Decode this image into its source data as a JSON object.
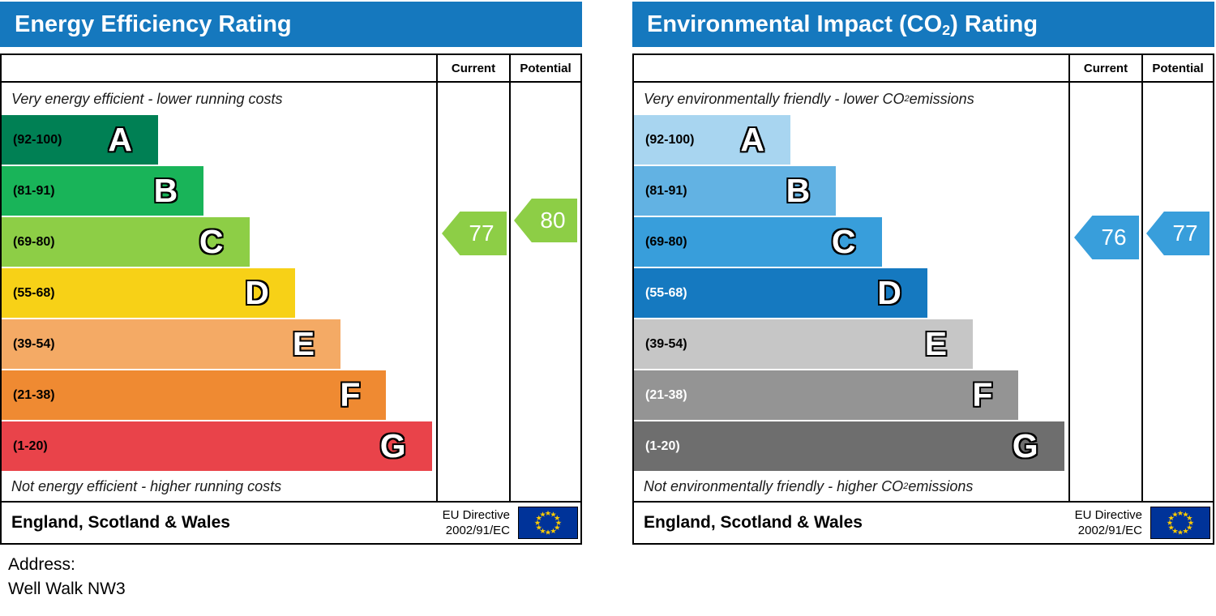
{
  "chart_data": [
    {
      "type": "bar",
      "title": "Energy Efficiency Rating",
      "categories": [
        "A (92-100)",
        "B (81-91)",
        "C (69-80)",
        "D (55-68)",
        "E (39-54)",
        "F (21-38)",
        "G (1-20)"
      ],
      "series": [
        {
          "name": "Current",
          "values": [
            77
          ],
          "band": "C"
        },
        {
          "name": "Potential",
          "values": [
            80
          ],
          "band": "C"
        }
      ],
      "xlabel": "",
      "ylabel": "",
      "ylim": [
        1,
        100
      ],
      "legend_position": "right-columns"
    },
    {
      "type": "bar",
      "title": "Environmental Impact (CO2) Rating",
      "categories": [
        "A (92-100)",
        "B (81-91)",
        "C (69-80)",
        "D (55-68)",
        "E (39-54)",
        "F (21-38)",
        "G (1-20)"
      ],
      "series": [
        {
          "name": "Current",
          "values": [
            76
          ],
          "band": "C"
        },
        {
          "name": "Potential",
          "values": [
            77
          ],
          "band": "C"
        }
      ],
      "xlabel": "",
      "ylabel": "",
      "ylim": [
        1,
        100
      ],
      "legend_position": "right-columns"
    }
  ],
  "charts": [
    {
      "header_color": "#1578be",
      "title": {
        "pre": "Energy Efficiency Rating",
        "sub": "",
        "post": ""
      },
      "columns": {
        "current": "Current",
        "potential": "Potential"
      },
      "top_note": {
        "pre": "Very energy efficient - lower running costs",
        "sub": "",
        "post": ""
      },
      "bottom_note": {
        "pre": "Not energy efficient - higher running costs",
        "sub": "",
        "post": ""
      },
      "bands": [
        {
          "range": "(92-100)",
          "letter": "A",
          "low": 92,
          "high": 100,
          "color": "#008054",
          "text_color": "#000000",
          "width_pct": 36
        },
        {
          "range": "(81-91)",
          "letter": "B",
          "low": 81,
          "high": 91,
          "color": "#19b459",
          "text_color": "#000000",
          "width_pct": 46.5
        },
        {
          "range": "(69-80)",
          "letter": "C",
          "low": 69,
          "high": 80,
          "color": "#8dce46",
          "text_color": "#000000",
          "width_pct": 57
        },
        {
          "range": "(55-68)",
          "letter": "D",
          "low": 55,
          "high": 68,
          "color": "#f7d117",
          "text_color": "#000000",
          "width_pct": 67.5
        },
        {
          "range": "(39-54)",
          "letter": "E",
          "low": 39,
          "high": 54,
          "color": "#f4aa65",
          "text_color": "#000000",
          "width_pct": 78
        },
        {
          "range": "(21-38)",
          "letter": "F",
          "low": 21,
          "high": 38,
          "color": "#ef8a32",
          "text_color": "#000000",
          "width_pct": 88.5
        },
        {
          "range": "(1-20)",
          "letter": "G",
          "low": 1,
          "high": 20,
          "color": "#e9434a",
          "text_color": "#000000",
          "width_pct": 99
        }
      ],
      "current": {
        "value": 77,
        "color": "#8dce46"
      },
      "potential": {
        "value": 80,
        "color": "#8dce46"
      },
      "footer": {
        "region": "England, Scotland & Wales",
        "directive_line1": "EU Directive",
        "directive_line2": "2002/91/EC"
      },
      "flag_colors": {
        "background": "#003399",
        "stars": "#ffcc00"
      }
    },
    {
      "header_color": "#1578be",
      "title": {
        "pre": "Environmental Impact (CO",
        "sub": "2",
        "post": ") Rating"
      },
      "columns": {
        "current": "Current",
        "potential": "Potential"
      },
      "top_note": {
        "pre": "Very environmentally friendly - lower CO",
        "sub": "2",
        "post": " emissions"
      },
      "bottom_note": {
        "pre": "Not environmentally friendly - higher CO",
        "sub": "2",
        "post": " emissions"
      },
      "bands": [
        {
          "range": "(92-100)",
          "letter": "A",
          "low": 92,
          "high": 100,
          "color": "#a8d5f0",
          "text_color": "#000000",
          "width_pct": 36
        },
        {
          "range": "(81-91)",
          "letter": "B",
          "low": 81,
          "high": 91,
          "color": "#62b2e3",
          "text_color": "#000000",
          "width_pct": 46.5
        },
        {
          "range": "(69-80)",
          "letter": "C",
          "low": 69,
          "high": 80,
          "color": "#389edb",
          "text_color": "#000000",
          "width_pct": 57
        },
        {
          "range": "(55-68)",
          "letter": "D",
          "low": 55,
          "high": 68,
          "color": "#1579c0",
          "text_color": "#ffffff",
          "width_pct": 67.5
        },
        {
          "range": "(39-54)",
          "letter": "E",
          "low": 39,
          "high": 54,
          "color": "#c6c6c6",
          "text_color": "#000000",
          "width_pct": 78
        },
        {
          "range": "(21-38)",
          "letter": "F",
          "low": 21,
          "high": 38,
          "color": "#949494",
          "text_color": "#ffffff",
          "width_pct": 88.5
        },
        {
          "range": "(1-20)",
          "letter": "G",
          "low": 1,
          "high": 20,
          "color": "#6e6e6e",
          "text_color": "#ffffff",
          "width_pct": 99
        }
      ],
      "current": {
        "value": 76,
        "color": "#389edb"
      },
      "potential": {
        "value": 77,
        "color": "#389edb"
      },
      "footer": {
        "region": "England, Scotland & Wales",
        "directive_line1": "EU Directive",
        "directive_line2": "2002/91/EC"
      },
      "flag_colors": {
        "background": "#003399",
        "stars": "#ffcc00"
      }
    }
  ],
  "address": {
    "label": "Address:",
    "value": "Well Walk NW3"
  }
}
